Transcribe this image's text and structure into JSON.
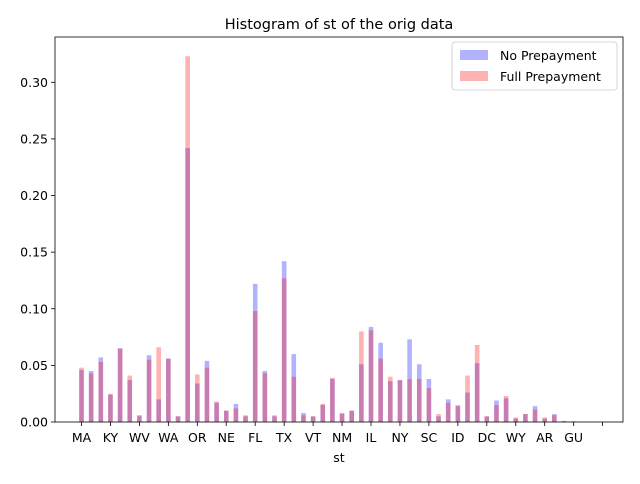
{
  "chart_data": {
    "type": "bar",
    "title": "Histogram of st of the orig data",
    "xlabel": "st",
    "ylabel": "",
    "ylim": [
      0,
      0.34
    ],
    "yticks": [
      0.0,
      0.05,
      0.1,
      0.15,
      0.2,
      0.25,
      0.3
    ],
    "ytick_labels": [
      "0.00",
      "0.05",
      "0.10",
      "0.15",
      "0.20",
      "0.25",
      "0.30"
    ],
    "xtick_labels": [
      "MA",
      "KY",
      "WV",
      "WA",
      "OR",
      "NE",
      "FL",
      "TX",
      "VT",
      "NM",
      "IL",
      "NY",
      "SC",
      "ID",
      "DC",
      "WY",
      "AR",
      "GU",
      ""
    ],
    "xtick_every": 3,
    "legend_position": "top-right",
    "grid": false,
    "series": [
      {
        "name": "No Prepayment",
        "color": "#0000ff",
        "alpha": 0.3,
        "values": [
          0.046,
          0.045,
          0.057,
          0.024,
          0.065,
          0.037,
          0.006,
          0.059,
          0.02,
          0.056,
          0.005,
          0.242,
          0.034,
          0.054,
          0.017,
          0.01,
          0.016,
          0.005,
          0.122,
          0.045,
          0.005,
          0.142,
          0.06,
          0.008,
          0.005,
          0.015,
          0.038,
          0.008,
          0.01,
          0.051,
          0.084,
          0.07,
          0.036,
          0.037,
          0.073,
          0.051,
          0.038,
          0.005,
          0.02,
          0.014,
          0.026,
          0.052,
          0.005,
          0.019,
          0.021,
          0.003,
          0.007,
          0.014,
          0.003,
          0.007,
          0.001,
          0.0005
        ]
      },
      {
        "name": "Full Prepayment",
        "color": "#ff0000",
        "alpha": 0.3,
        "values": [
          0.048,
          0.043,
          0.053,
          0.025,
          0.065,
          0.041,
          0.005,
          0.055,
          0.066,
          0.056,
          0.005,
          0.323,
          0.042,
          0.048,
          0.018,
          0.01,
          0.012,
          0.006,
          0.098,
          0.043,
          0.006,
          0.127,
          0.04,
          0.006,
          0.005,
          0.016,
          0.039,
          0.007,
          0.01,
          0.08,
          0.081,
          0.056,
          0.04,
          0.037,
          0.038,
          0.038,
          0.03,
          0.007,
          0.017,
          0.015,
          0.041,
          0.068,
          0.005,
          0.015,
          0.023,
          0.004,
          0.007,
          0.011,
          0.004,
          0.006,
          0.0005,
          0.0005
        ]
      }
    ]
  }
}
